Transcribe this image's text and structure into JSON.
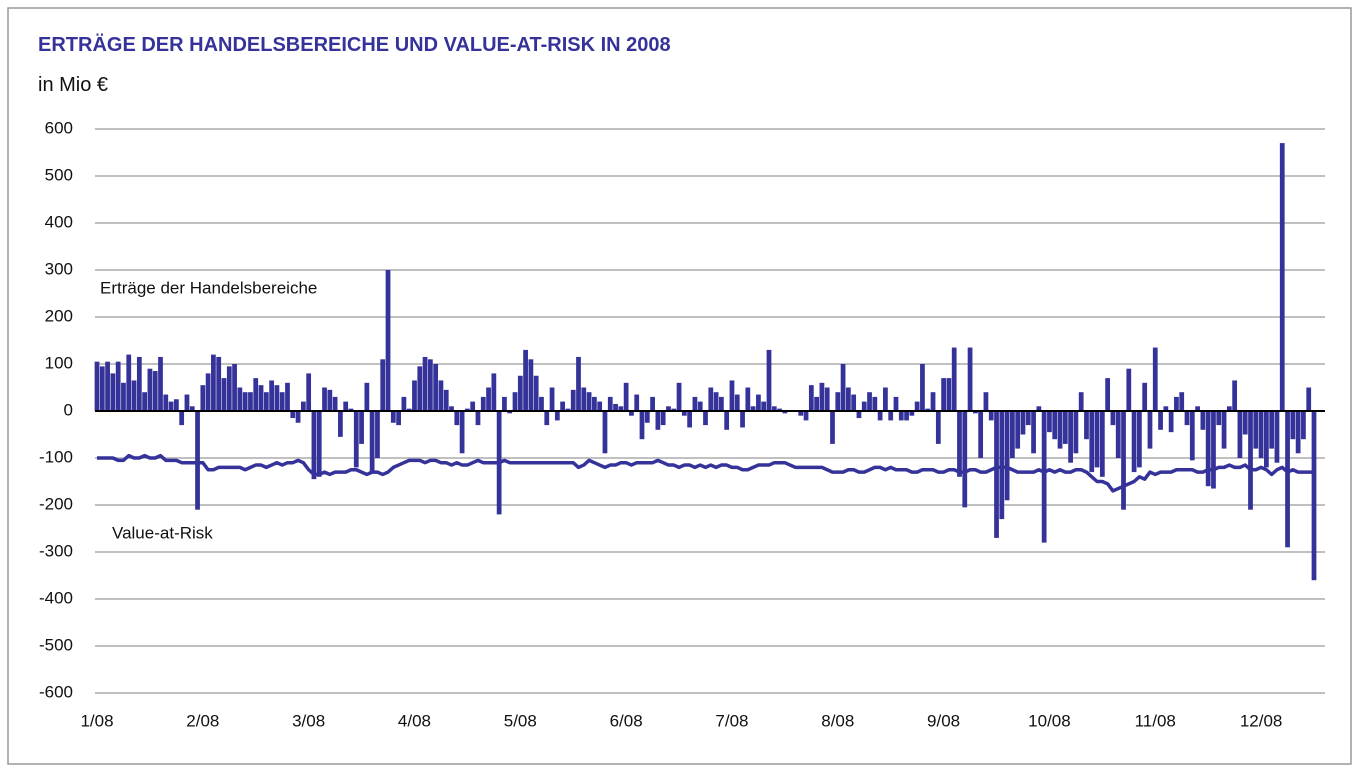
{
  "chart_data": {
    "type": "bar",
    "title": "ERTRÄGE DER HANDELSBEREICHE UND VALUE-AT-RISK IN 2008",
    "subtitle": "in Mio €",
    "categories": [
      "1/08",
      null,
      null,
      null,
      null,
      null,
      null,
      null,
      null,
      null,
      null,
      null,
      null,
      null,
      null,
      null,
      null,
      null,
      null,
      null,
      "2/08",
      null,
      null,
      null,
      null,
      null,
      null,
      null,
      null,
      null,
      null,
      null,
      null,
      null,
      null,
      null,
      null,
      null,
      null,
      null,
      "3/08",
      null,
      null,
      null,
      null,
      null,
      null,
      null,
      null,
      null,
      null,
      null,
      null,
      null,
      null,
      null,
      null,
      null,
      null,
      null,
      "4/08",
      null,
      null,
      null,
      null,
      null,
      null,
      null,
      null,
      null,
      null,
      null,
      null,
      null,
      null,
      null,
      null,
      null,
      null,
      null,
      "5/08",
      null,
      null,
      null,
      null,
      null,
      null,
      null,
      null,
      null,
      null,
      null,
      null,
      null,
      null,
      null,
      null,
      null,
      null,
      null,
      "6/08",
      null,
      null,
      null,
      null,
      null,
      null,
      null,
      null,
      null,
      null,
      null,
      null,
      null,
      null,
      null,
      null,
      null,
      null,
      null,
      "7/08",
      null,
      null,
      null,
      null,
      null,
      null,
      null,
      null,
      null,
      null,
      null,
      null,
      null,
      null,
      null,
      null,
      null,
      null,
      null,
      "8/08",
      null,
      null,
      null,
      null,
      null,
      null,
      null,
      null,
      null,
      null,
      null,
      null,
      null,
      null,
      null,
      null,
      null,
      null,
      null,
      "9/08",
      null,
      null,
      null,
      null,
      null,
      null,
      null,
      null,
      null,
      null,
      null,
      null,
      null,
      null,
      null,
      null,
      null,
      null,
      null,
      "10/08",
      null,
      null,
      null,
      null,
      null,
      null,
      null,
      null,
      null,
      null,
      null,
      null,
      null,
      null,
      null,
      null,
      null,
      null,
      null,
      "11/08",
      null,
      null,
      null,
      null,
      null,
      null,
      null,
      null,
      null,
      null,
      null,
      null,
      null,
      null,
      null,
      null,
      null,
      null,
      null,
      "12/08",
      null,
      null,
      null,
      null,
      null,
      null,
      null,
      null,
      null,
      null
    ],
    "series": [
      {
        "name": "Erträge der Handelsbereiche",
        "type": "bar",
        "color": "#35339a",
        "values": [
          105,
          95,
          105,
          80,
          105,
          60,
          120,
          65,
          115,
          40,
          90,
          85,
          115,
          35,
          20,
          25,
          -30,
          35,
          10,
          -210,
          55,
          80,
          120,
          115,
          70,
          95,
          100,
          50,
          40,
          40,
          70,
          55,
          40,
          65,
          55,
          40,
          60,
          -15,
          -25,
          20,
          80,
          -145,
          -140,
          50,
          45,
          30,
          -55,
          20,
          5,
          -120,
          -70,
          60,
          -130,
          -100,
          110,
          300,
          -25,
          -30,
          30,
          5,
          65,
          95,
          115,
          110,
          100,
          65,
          45,
          10,
          -30,
          -90,
          5,
          20,
          -30,
          30,
          50,
          80,
          -220,
          30,
          -5,
          40,
          75,
          130,
          110,
          75,
          30,
          -30,
          50,
          -20,
          20,
          5,
          45,
          115,
          50,
          40,
          30,
          20,
          -90,
          30,
          15,
          10,
          60,
          -10,
          35,
          -60,
          -25,
          30,
          -40,
          -30,
          10,
          5,
          60,
          -10,
          -35,
          30,
          20,
          -30,
          50,
          40,
          30,
          -40,
          65,
          35,
          -35,
          50,
          10,
          35,
          20,
          130,
          10,
          5,
          -5,
          0,
          0,
          -10,
          -20,
          55,
          30,
          60,
          50,
          -70,
          40,
          100,
          50,
          35,
          -15,
          20,
          40,
          30,
          -20,
          50,
          -20,
          30,
          -20,
          -20,
          -10,
          20,
          100,
          5,
          40,
          -70,
          70,
          70,
          135,
          -140,
          -205,
          135,
          -5,
          -100,
          40,
          -20,
          -270,
          -230,
          -190,
          -100,
          -80,
          -50,
          -30,
          -90,
          10,
          -280,
          -45,
          -60,
          -80,
          -70,
          -110,
          -90,
          40,
          -60,
          -130,
          -120,
          -140,
          70,
          -30,
          -100,
          -210,
          90,
          -130,
          -120,
          60,
          -80,
          135,
          -40,
          10,
          -45,
          30,
          40,
          -30,
          -105,
          10,
          -40,
          -160,
          -165,
          -30,
          -80,
          10,
          65,
          -100,
          -50,
          -210,
          -80,
          -100,
          -120,
          -80,
          -110,
          570,
          -290,
          -60,
          -90,
          -60,
          50,
          -360
        ]
      },
      {
        "name": "Value-at-Risk",
        "type": "line",
        "color": "#35339a",
        "values": [
          -100,
          -100,
          -100,
          -100,
          -105,
          -105,
          -95,
          -100,
          -100,
          -95,
          -100,
          -100,
          -95,
          -105,
          -105,
          -105,
          -110,
          -110,
          -110,
          -110,
          -110,
          -125,
          -125,
          -120,
          -120,
          -120,
          -120,
          -120,
          -125,
          -120,
          -115,
          -115,
          -120,
          -115,
          -110,
          -115,
          -110,
          -110,
          -105,
          -110,
          -125,
          -135,
          -135,
          -130,
          -135,
          -130,
          -130,
          -130,
          -125,
          -125,
          -130,
          -135,
          -130,
          -130,
          -135,
          -130,
          -120,
          -115,
          -110,
          -105,
          -105,
          -105,
          -110,
          -105,
          -105,
          -110,
          -110,
          -115,
          -110,
          -115,
          -115,
          -110,
          -105,
          -110,
          -110,
          -110,
          -110,
          -105,
          -110,
          -110,
          -110,
          -110,
          -110,
          -110,
          -110,
          -110,
          -110,
          -110,
          -110,
          -110,
          -110,
          -120,
          -115,
          -105,
          -110,
          -115,
          -120,
          -115,
          -115,
          -110,
          -110,
          -115,
          -110,
          -110,
          -110,
          -110,
          -105,
          -110,
          -115,
          -115,
          -120,
          -115,
          -115,
          -120,
          -115,
          -120,
          -115,
          -120,
          -115,
          -115,
          -120,
          -120,
          -125,
          -125,
          -120,
          -115,
          -115,
          -115,
          -110,
          -110,
          -110,
          -115,
          -120,
          -120,
          -120,
          -120,
          -120,
          -120,
          -125,
          -130,
          -130,
          -130,
          -125,
          -125,
          -130,
          -130,
          -125,
          -120,
          -120,
          -125,
          -120,
          -125,
          -125,
          -125,
          -130,
          -130,
          -125,
          -125,
          -125,
          -130,
          -130,
          -125,
          -125,
          -130,
          -130,
          -125,
          -125,
          -130,
          -130,
          -125,
          -120,
          -120,
          -120,
          -125,
          -130,
          -130,
          -130,
          -130,
          -125,
          -130,
          -125,
          -130,
          -125,
          -130,
          -130,
          -125,
          -125,
          -130,
          -140,
          -150,
          -150,
          -155,
          -170,
          -165,
          -160,
          -155,
          -150,
          -140,
          -145,
          -130,
          -135,
          -130,
          -130,
          -130,
          -125,
          -125,
          -125,
          -125,
          -130,
          -130,
          -125,
          -125,
          -120,
          -120,
          -115,
          -120,
          -120,
          -115,
          -125,
          -125,
          -120,
          -125,
          -135,
          -125,
          -120,
          -130,
          -125,
          -130,
          -130,
          -130,
          -130
        ]
      }
    ],
    "ylim": [
      -600,
      600
    ],
    "yticks": [
      600,
      500,
      400,
      300,
      200,
      100,
      0,
      -100,
      -200,
      -300,
      -400,
      -500,
      -600
    ],
    "grid": true
  }
}
